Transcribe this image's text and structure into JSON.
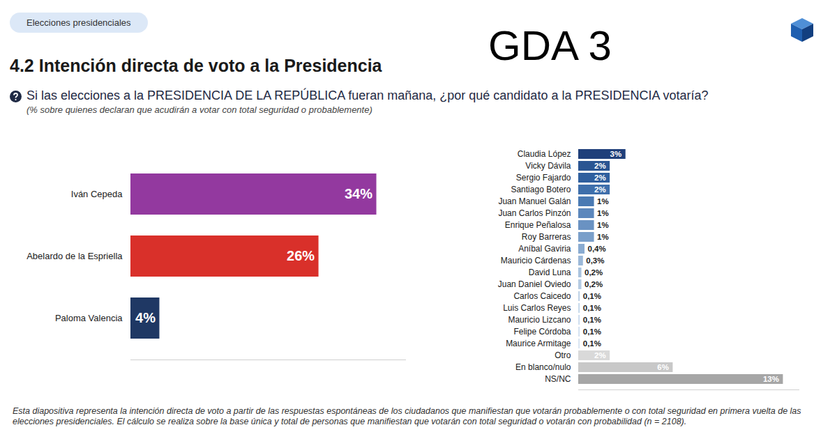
{
  "header": {
    "badge": "Elecciones presidenciales",
    "title": "4.2 Intención directa de voto a la Presidencia",
    "tag": "GDA 3",
    "question": "Si las elecciones a la PRESIDENCIA DE LA REPÚBLICA fueran mañana, ¿por qué candidato a la PRESIDENCIA votaría?",
    "note": "(% sobre quienes declaran que acudirán a votar con total seguridad o probablemente)"
  },
  "footer": {
    "footnote": "Esta diapositiva representa la intención directa de voto a partir de las respuestas espontáneas de los ciudadanos que manifiestan que votarán probablemente o con total seguridad en primera vuelta de las elecciones presidenciales. El cálculo se realiza sobre la base única y total de personas que manifiestan que votarán con total seguridad o votarán con probabilidad (n = 2108)."
  },
  "chart_data": [
    {
      "type": "bar",
      "orientation": "horizontal",
      "data_labels": true,
      "tick_labels": "y",
      "categories": [
        "Iván Cepeda",
        "Abelardo de la Espriella",
        "Paloma Valencia"
      ],
      "values": [
        34,
        26,
        4
      ],
      "value_labels": [
        "34%",
        "26%",
        "4%"
      ],
      "colors": [
        "#93399f",
        "#d9302a",
        "#1f3864"
      ],
      "xlim": [
        0,
        38
      ],
      "xticks": []
    },
    {
      "type": "bar",
      "orientation": "horizontal",
      "data_labels": true,
      "tick_labels": "y",
      "categories": [
        "Claudia López",
        "Vicky Dávila",
        "Sergio Fajardo",
        "Santiago Botero",
        "Juan Manuel Galán",
        "Juan Carlos Pinzón",
        "Enrique Peñalosa",
        "Roy Barreras",
        "Aníbal Gaviria",
        "Mauricio Cárdenas",
        "David Luna",
        "Juan Daniel Oviedo",
        "Carlos Caicedo",
        "Luis Carlos Reyes",
        "Mauricio Lizcano",
        "Felipe Córdoba",
        "Maurice Armitage",
        "Otro",
        "En blanco/nulo",
        "NS/NC"
      ],
      "values": [
        3,
        2,
        2,
        2,
        1,
        1,
        1,
        1,
        0.4,
        0.3,
        0.2,
        0.2,
        0.1,
        0.1,
        0.1,
        0.1,
        0.1,
        2,
        6,
        13
      ],
      "value_labels": [
        "3%",
        "2%",
        "2%",
        "2%",
        "1%",
        "1%",
        "1%",
        "1%",
        "0,4%",
        "0,3%",
        "0,2%",
        "0,2%",
        "0,1%",
        "0,1%",
        "0,1%",
        "0,1%",
        "0,1%",
        "2%",
        "6%",
        "13%"
      ],
      "colors": [
        "#1f3f7a",
        "#2a5592",
        "#2f5f9e",
        "#3e6fab",
        "#4a7ab3",
        "#5c87bc",
        "#6a92c2",
        "#7a9fca",
        "#8aabd1",
        "#9bb8d8",
        "#a9c3de",
        "#b5cbe2",
        "#c0d3e7",
        "#c9dbec",
        "#d0dff0",
        "#d6e3f2",
        "#dae6f3",
        "#d9d9d9",
        "#c8c8c8",
        "#a6a6a6"
      ],
      "xlim": [
        0,
        14
      ],
      "xticks": []
    }
  ]
}
